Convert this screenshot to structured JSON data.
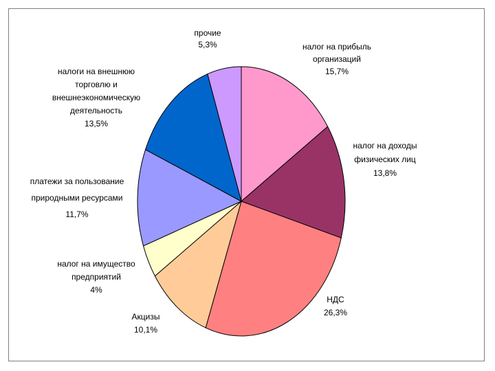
{
  "chart_data": {
    "type": "pie",
    "slices": [
      {
        "label_lines": [
          "налог на прибыль",
          "организаций",
          "15,7%"
        ],
        "value": 15.7,
        "color": "#ff99cc"
      },
      {
        "label_lines": [
          "налог на доходы",
          "физических лиц",
          "13,8%"
        ],
        "value": 13.8,
        "color": "#993366"
      },
      {
        "label_lines": [
          "НДС",
          "26,3%"
        ],
        "value": 26.3,
        "color": "#ff8080"
      },
      {
        "label_lines": [
          "Акцизы",
          "10,1%"
        ],
        "value": 10.1,
        "color": "#ffcc99"
      },
      {
        "label_lines": [
          "налог на имущество",
          "предприятий",
          "4%"
        ],
        "value": 4.0,
        "color": "#ffffcc"
      },
      {
        "label_lines": [
          "платежи за пользование",
          "природными ресурсами",
          "11,7%"
        ],
        "value": 11.7,
        "color": "#9999ff"
      },
      {
        "label_lines": [
          "налоги на внешнюю",
          "торговлю и",
          "внешнеэкономическую",
          "деятельность",
          "13,5%"
        ],
        "value": 13.5,
        "color": "#0066cc"
      },
      {
        "label_lines": [
          "прочие",
          "5,3%"
        ],
        "value": 5.3,
        "color": "#cc99ff"
      }
    ],
    "start_angle_deg": 0,
    "direction": "clockwise",
    "legend": "none"
  }
}
